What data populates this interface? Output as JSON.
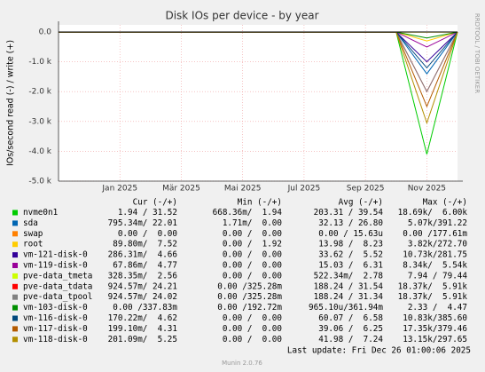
{
  "chart_data": {
    "type": "line",
    "title": "Disk IOs per device - by year",
    "y_label": "IOs/second read (-) / write (+)",
    "side_label": "RRDTOOL / TOBI OETIKER",
    "x": [
      "2024-11",
      "2024-12",
      "2025-01",
      "2025-02",
      "2025-03",
      "2025-04",
      "2025-05",
      "2025-06",
      "2025-07",
      "2025-08",
      "2025-09",
      "2025-10",
      "2025-11",
      "2025-12"
    ],
    "xlim": [
      "2024-11",
      "2025-12"
    ],
    "xticks": [
      {
        "value": "2025-01",
        "label": "Jan 2025"
      },
      {
        "value": "2025-03",
        "label": "Mär 2025"
      },
      {
        "value": "2025-05",
        "label": "Mai 2025"
      },
      {
        "value": "2025-07",
        "label": "Jul 2025"
      },
      {
        "value": "2025-09",
        "label": "Sep 2025"
      },
      {
        "value": "2025-11",
        "label": "Nov 2025"
      }
    ],
    "ylim": [
      -5000,
      240
    ],
    "yticks": [
      {
        "value": 0,
        "label": "0.0"
      },
      {
        "value": -1000,
        "label": "-1.0 k"
      },
      {
        "value": -2000,
        "label": "-2.0 k"
      },
      {
        "value": -3000,
        "label": "-3.0 k"
      },
      {
        "value": -4000,
        "label": "-4.0 k"
      },
      {
        "value": -5000,
        "label": "-5.0 k"
      }
    ],
    "grid": true,
    "legend_columns": [
      "Cur (-/+)",
      "Min (-/+)",
      "Avg (-/+)",
      "Max (-/+)"
    ],
    "series": [
      {
        "name": "nvme0n1",
        "color": "#00cc00",
        "values": [
          0,
          0,
          0,
          0,
          0,
          0,
          0,
          0,
          0,
          0,
          0,
          0,
          -4100,
          0
        ],
        "cur": "1.94 / 31.52",
        "min": "668.36m/  1.94",
        "avg": "203.31 / 39.54",
        "max": "18.69k/  6.00k"
      },
      {
        "name": "sda",
        "color": "#0066b3",
        "values": [
          0,
          0,
          0,
          0,
          0,
          0,
          0,
          0,
          0,
          0,
          0,
          0,
          -1400,
          0
        ],
        "cur": "795.34m/ 22.01",
        "min": "1.71m/  0.00",
        "avg": "32.13 / 26.80",
        "max": "5.07k/391.22"
      },
      {
        "name": "swap",
        "color": "#ff8000",
        "values": [
          0,
          0,
          0,
          0,
          0,
          0,
          0,
          0,
          0,
          0,
          0,
          0,
          0,
          0
        ],
        "cur": "0.00 /  0.00",
        "min": "0.00 /  0.00",
        "avg": "0.00 / 15.63u",
        "max": "0.00 /177.61m"
      },
      {
        "name": "root",
        "color": "#ffcc00",
        "values": [
          0,
          0,
          0,
          0,
          0,
          0,
          0,
          0,
          0,
          0,
          0,
          0,
          -300,
          0
        ],
        "cur": "89.80m/  7.52",
        "min": "0.00 /  1.92",
        "avg": "13.98 /  8.23",
        "max": "3.82k/272.70"
      },
      {
        "name": "vm-121-disk-0",
        "color": "#330099",
        "values": [
          0,
          0,
          0,
          0,
          0,
          0,
          0,
          0,
          0,
          0,
          0,
          0,
          -1000,
          0
        ],
        "cur": "286.31m/  4.66",
        "min": "0.00 /  0.00",
        "avg": "33.62 /  5.52",
        "max": "10.73k/281.75"
      },
      {
        "name": "vm-119-disk-0",
        "color": "#990099",
        "values": [
          0,
          0,
          0,
          0,
          0,
          0,
          0,
          0,
          0,
          0,
          0,
          0,
          -500,
          0
        ],
        "cur": "67.86m/  4.77",
        "min": "0.00 /  0.00",
        "avg": "15.03 /  6.31",
        "max": "8.34k/  5.54k"
      },
      {
        "name": "pve-data_tmeta",
        "color": "#ccff00",
        "values": [
          0,
          0,
          0,
          0,
          0,
          0,
          0,
          0,
          0,
          0,
          0,
          0,
          0,
          0
        ],
        "cur": "328.35m/  2.56",
        "min": "0.00 /  0.00",
        "avg": "522.34m/  2.78",
        "max": "7.94 / 79.44"
      },
      {
        "name": "pve-data_tdata",
        "color": "#ff0000",
        "values": [
          0,
          0,
          0,
          0,
          0,
          0,
          0,
          0,
          0,
          0,
          0,
          0,
          -2000,
          0
        ],
        "cur": "924.57m/ 24.21",
        "min": "0.00 /325.28m",
        "avg": "188.24 / 31.54",
        "max": "18.37k/  5.91k"
      },
      {
        "name": "pve-data_tpool",
        "color": "#808080",
        "values": [
          0,
          0,
          0,
          0,
          0,
          0,
          0,
          0,
          0,
          0,
          0,
          0,
          -2000,
          0
        ],
        "cur": "924.57m/ 24.02",
        "min": "0.00 /325.28m",
        "avg": "188.24 / 31.34",
        "max": "18.37k/  5.91k"
      },
      {
        "name": "vm-103-disk-0",
        "color": "#008f00",
        "values": [
          0,
          0,
          0,
          0,
          0,
          0,
          0,
          0,
          0,
          0,
          0,
          0,
          -200,
          0
        ],
        "cur": "0.00 /337.83m",
        "min": "0.00 /192.72m",
        "avg": "965.10u/361.94m",
        "max": "2.33 /  4.47"
      },
      {
        "name": "vm-116-disk-0",
        "color": "#00487d",
        "values": [
          0,
          0,
          0,
          0,
          0,
          0,
          0,
          0,
          0,
          0,
          0,
          0,
          -1200,
          0
        ],
        "cur": "170.22m/  4.62",
        "min": "0.00 /  0.00",
        "avg": "60.07 /  6.58",
        "max": "10.83k/385.60"
      },
      {
        "name": "vm-117-disk-0",
        "color": "#b35a00",
        "values": [
          0,
          0,
          0,
          0,
          0,
          0,
          0,
          0,
          0,
          0,
          0,
          0,
          -2500,
          0
        ],
        "cur": "199.10m/  4.31",
        "min": "0.00 /  0.00",
        "avg": "39.06 /  6.25",
        "max": "17.35k/379.46"
      },
      {
        "name": "vm-118-disk-0",
        "color": "#b38f00",
        "values": [
          0,
          0,
          0,
          0,
          0,
          0,
          0,
          0,
          0,
          0,
          0,
          0,
          -3050,
          0
        ],
        "cur": "201.09m/  5.25",
        "min": "0.00 /  0.00",
        "avg": "41.98 /  7.24",
        "max": "13.15k/297.65"
      }
    ],
    "last_update": "Last update: Fri Dec 26 01:00:06 2025",
    "footer": "Munin 2.0.76"
  }
}
